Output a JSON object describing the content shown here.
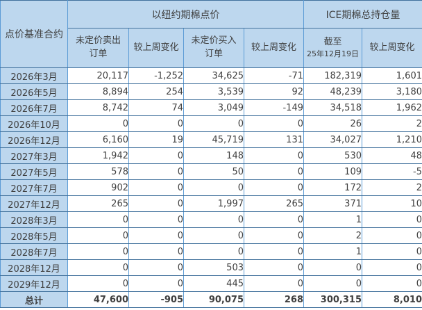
{
  "colors": {
    "header_bg": "#bdd7ee",
    "cell_bg": "#ffffff",
    "h_border": "#41719c",
    "v_border": "#5b9bd5",
    "text": "#3f3f3f"
  },
  "table": {
    "corner_header": "点价基准合约",
    "groups": [
      {
        "label": "以纽约期棉点价",
        "colspan": 4
      },
      {
        "label": "ICE期棉总持仓量",
        "colspan": 2
      }
    ],
    "sub_headers": [
      {
        "key": "unpriced-sell-orders",
        "line1": "未定价卖出",
        "line2": "订单"
      },
      {
        "key": "wow-change-sell",
        "line1": "较上周变化",
        "line2": ""
      },
      {
        "key": "unpriced-buy-orders",
        "line1": "未定价买入",
        "line2": "订单"
      },
      {
        "key": "wow-change-buy",
        "line1": "较上周变化",
        "line2": ""
      },
      {
        "key": "as-of-date",
        "line1": "截至",
        "line2": "25年12月19日"
      },
      {
        "key": "wow-change-oi",
        "line1": "较上周变化",
        "line2": ""
      }
    ],
    "rows": [
      {
        "label": "2026年3月",
        "values": [
          "20,117",
          "-1,252",
          "34,625",
          "-71",
          "182,319",
          "1,601"
        ]
      },
      {
        "label": "2026年5月",
        "values": [
          "8,894",
          "254",
          "3,539",
          "92",
          "48,239",
          "3,180"
        ]
      },
      {
        "label": "2026年7月",
        "values": [
          "8,742",
          "74",
          "3,049",
          "-149",
          "34,518",
          "1,962"
        ]
      },
      {
        "label": "2026年10月",
        "values": [
          "0",
          "0",
          "0",
          "0",
          "26",
          "2"
        ]
      },
      {
        "label": "2026年12月",
        "values": [
          "6,160",
          "19",
          "45,719",
          "131",
          "34,027",
          "1,210"
        ]
      },
      {
        "label": "2027年3月",
        "values": [
          "1,942",
          "0",
          "148",
          "0",
          "530",
          "48"
        ]
      },
      {
        "label": "2027年5月",
        "values": [
          "578",
          "0",
          "50",
          "0",
          "109",
          "-5"
        ]
      },
      {
        "label": "2027年7月",
        "values": [
          "902",
          "0",
          "0",
          "0",
          "172",
          "2"
        ]
      },
      {
        "label": "2027年12月",
        "values": [
          "265",
          "0",
          "1,997",
          "265",
          "371",
          "10"
        ]
      },
      {
        "label": "2028年3月",
        "values": [
          "0",
          "0",
          "0",
          "0",
          "1",
          "0"
        ]
      },
      {
        "label": "2028年5月",
        "values": [
          "0",
          "0",
          "0",
          "0",
          "2",
          "0"
        ]
      },
      {
        "label": "2028年7月",
        "values": [
          "0",
          "0",
          "0",
          "0",
          "1",
          "0"
        ]
      },
      {
        "label": "2028年12月",
        "values": [
          "0",
          "0",
          "503",
          "0",
          "0",
          "0"
        ]
      },
      {
        "label": "2029年12月",
        "values": [
          "0",
          "0",
          "445",
          "0",
          "0",
          "0"
        ]
      }
    ],
    "total": {
      "label": "总计",
      "values": [
        "47,600",
        "-905",
        "90,075",
        "268",
        "300,315",
        "8,010"
      ]
    }
  },
  "chart_data": {
    "type": "table",
    "title": "",
    "row_header": "点价基准合约",
    "column_groups": [
      {
        "label": "以纽约期棉点价",
        "columns": [
          "未定价卖出订单",
          "较上周变化",
          "未定价买入订单",
          "较上周变化"
        ]
      },
      {
        "label": "ICE期棉总持仓量",
        "columns": [
          "截至25年12月19日",
          "较上周变化"
        ]
      }
    ],
    "categories": [
      "2026年3月",
      "2026年5月",
      "2026年7月",
      "2026年10月",
      "2026年12月",
      "2027年3月",
      "2027年5月",
      "2027年7月",
      "2027年12月",
      "2028年3月",
      "2028年5月",
      "2028年7月",
      "2028年12月",
      "2029年12月",
      "总计"
    ],
    "series": [
      {
        "name": "未定价卖出订单",
        "values": [
          20117,
          8894,
          8742,
          0,
          6160,
          1942,
          578,
          902,
          265,
          0,
          0,
          0,
          0,
          0,
          47600
        ]
      },
      {
        "name": "较上周变化(卖出)",
        "values": [
          -1252,
          254,
          74,
          0,
          19,
          0,
          0,
          0,
          0,
          0,
          0,
          0,
          0,
          0,
          -905
        ]
      },
      {
        "name": "未定价买入订单",
        "values": [
          34625,
          3539,
          3049,
          0,
          45719,
          148,
          50,
          0,
          1997,
          0,
          0,
          0,
          503,
          445,
          90075
        ]
      },
      {
        "name": "较上周变化(买入)",
        "values": [
          -71,
          92,
          -149,
          0,
          131,
          0,
          0,
          0,
          265,
          0,
          0,
          0,
          0,
          0,
          268
        ]
      },
      {
        "name": "ICE期棉总持仓量截至25年12月19日",
        "values": [
          182319,
          48239,
          34518,
          26,
          34027,
          530,
          109,
          172,
          371,
          1,
          2,
          1,
          0,
          0,
          300315
        ]
      },
      {
        "name": "较上周变化(持仓)",
        "values": [
          1601,
          3180,
          1962,
          2,
          1210,
          48,
          -5,
          2,
          10,
          0,
          0,
          0,
          0,
          0,
          8010
        ]
      }
    ]
  }
}
